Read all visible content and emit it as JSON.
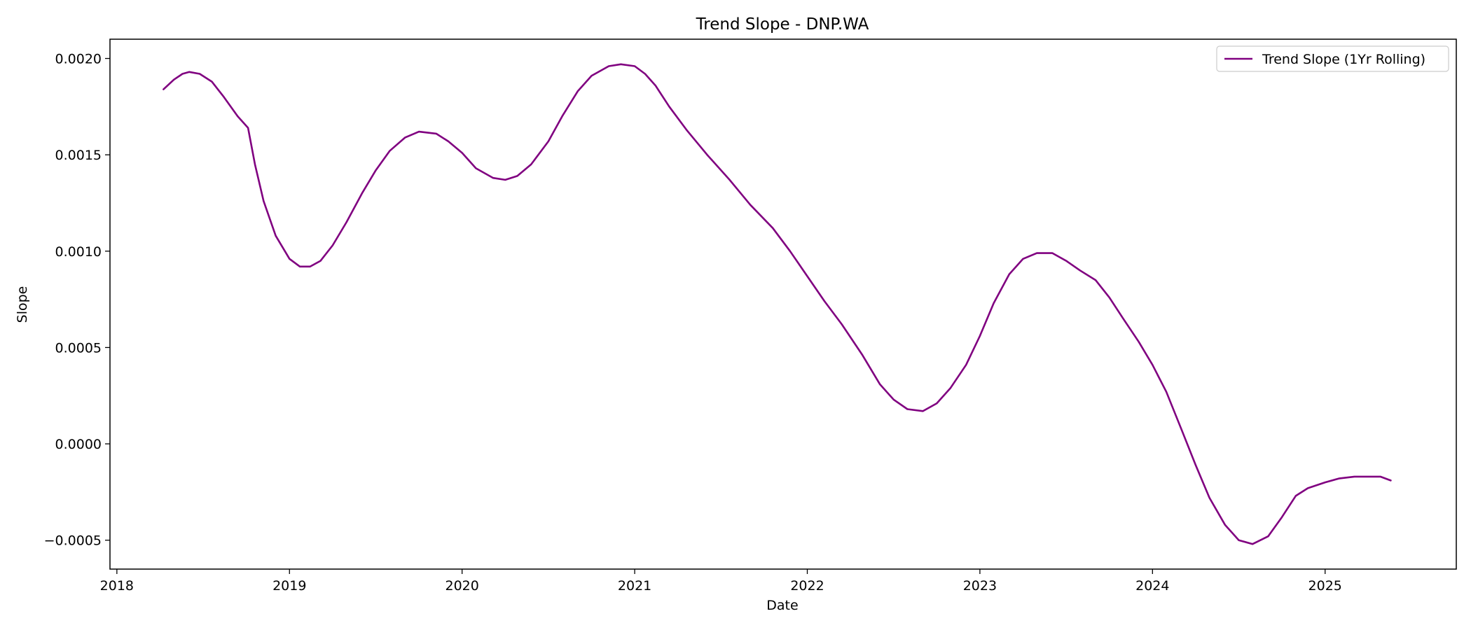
{
  "chart_data": {
    "type": "line",
    "title": "Trend Slope - DNP.WA",
    "xlabel": "Date",
    "ylabel": "Slope",
    "xlim": [
      2017.96,
      2025.76
    ],
    "ylim": [
      -0.00065,
      0.0021
    ],
    "x_ticks": [
      2018,
      2019,
      2020,
      2021,
      2022,
      2023,
      2024,
      2025
    ],
    "x_tick_labels": [
      "2018",
      "2019",
      "2020",
      "2021",
      "2022",
      "2023",
      "2024",
      "2025"
    ],
    "y_ticks": [
      -0.0005,
      0.0,
      0.0005,
      0.001,
      0.0015,
      0.002
    ],
    "y_tick_labels": [
      "−0.0005",
      "0.0000",
      "0.0005",
      "0.0010",
      "0.0015",
      "0.0020"
    ],
    "legend_position": "top-right",
    "grid": false,
    "series": [
      {
        "name": "Trend Slope (1Yr Rolling)",
        "color": "#800080",
        "x": [
          2018.27,
          2018.33,
          2018.38,
          2018.42,
          2018.48,
          2018.55,
          2018.62,
          2018.7,
          2018.76,
          2018.8,
          2018.85,
          2018.92,
          2019.0,
          2019.06,
          2019.12,
          2019.18,
          2019.25,
          2019.33,
          2019.42,
          2019.5,
          2019.58,
          2019.67,
          2019.75,
          2019.85,
          2019.92,
          2020.0,
          2020.08,
          2020.18,
          2020.25,
          2020.32,
          2020.4,
          2020.5,
          2020.58,
          2020.67,
          2020.75,
          2020.85,
          2020.92,
          2021.0,
          2021.06,
          2021.12,
          2021.2,
          2021.3,
          2021.42,
          2021.55,
          2021.67,
          2021.8,
          2021.9,
          2022.0,
          2022.1,
          2022.2,
          2022.32,
          2022.42,
          2022.5,
          2022.58,
          2022.67,
          2022.75,
          2022.83,
          2022.92,
          2023.0,
          2023.08,
          2023.17,
          2023.25,
          2023.33,
          2023.42,
          2023.5,
          2023.58,
          2023.67,
          2023.75,
          2023.83,
          2023.92,
          2024.0,
          2024.08,
          2024.17,
          2024.25,
          2024.33,
          2024.42,
          2024.5,
          2024.58,
          2024.67,
          2024.75,
          2024.83,
          2024.9,
          2025.0,
          2025.08,
          2025.17,
          2025.25,
          2025.32,
          2025.38
        ],
        "y": [
          0.00184,
          0.00189,
          0.00192,
          0.00193,
          0.00192,
          0.00188,
          0.0018,
          0.0017,
          0.00164,
          0.00145,
          0.00126,
          0.00108,
          0.00096,
          0.00092,
          0.00092,
          0.00095,
          0.00103,
          0.00115,
          0.0013,
          0.00142,
          0.00152,
          0.00159,
          0.00162,
          0.00161,
          0.00157,
          0.00151,
          0.00143,
          0.00138,
          0.00137,
          0.00139,
          0.00145,
          0.00157,
          0.0017,
          0.00183,
          0.00191,
          0.00196,
          0.00197,
          0.00196,
          0.00192,
          0.00186,
          0.00175,
          0.00163,
          0.0015,
          0.00137,
          0.00124,
          0.00112,
          0.001,
          0.00087,
          0.00074,
          0.00062,
          0.00046,
          0.00031,
          0.00023,
          0.00018,
          0.00017,
          0.00021,
          0.00029,
          0.00041,
          0.00056,
          0.00073,
          0.00088,
          0.00096,
          0.00099,
          0.00099,
          0.00095,
          0.0009,
          0.00085,
          0.00076,
          0.00065,
          0.00053,
          0.00041,
          0.00027,
          7e-05,
          -0.00011,
          -0.00028,
          -0.00042,
          -0.0005,
          -0.00052,
          -0.00048,
          -0.00038,
          -0.00027,
          -0.00023,
          -0.0002,
          -0.00018,
          -0.00017,
          -0.00017,
          -0.00017,
          -0.00019
        ]
      }
    ]
  }
}
